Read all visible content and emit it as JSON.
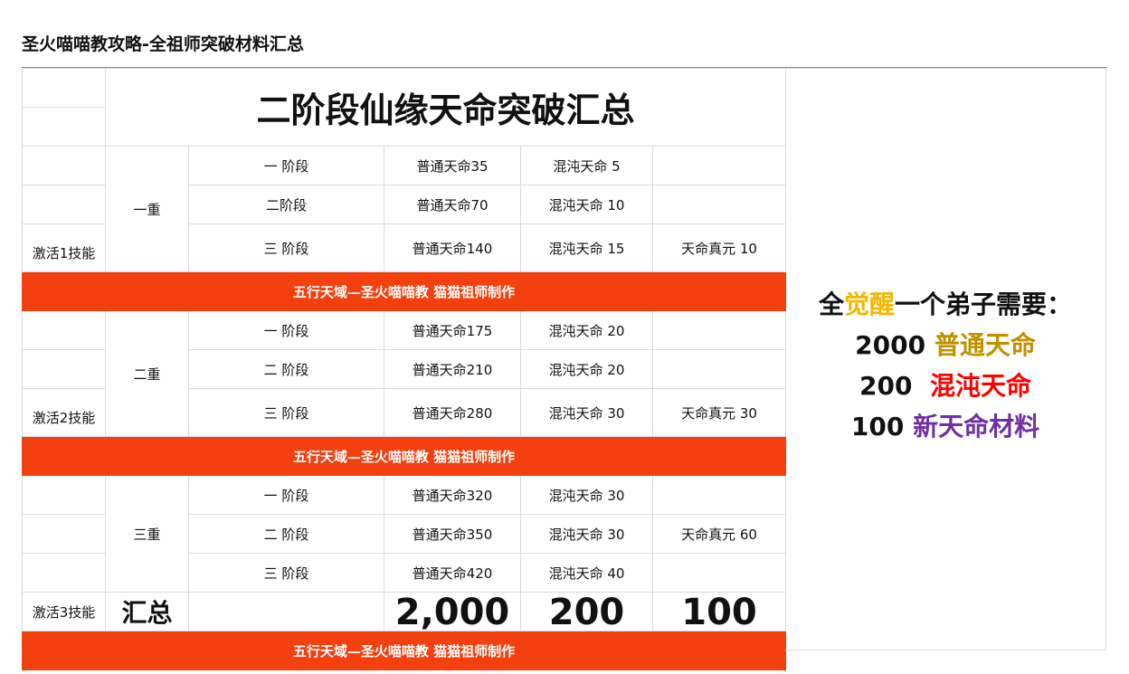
{
  "page_title": "圣火喵喵教攻略-全祖师突破材料汇总",
  "table_title": "二阶段仙缘天命突破汇总",
  "banner_text": "五行天域—圣火喵喵教 猫猫祖师制作",
  "tiers": [
    {
      "tier": "一重",
      "activation": "激活1技能",
      "rows": [
        {
          "stage": "一 阶段",
          "normal": "普通天命35",
          "chaos": "混沌天命 5",
          "essence": ""
        },
        {
          "stage": "二阶段",
          "normal": "普通天命70",
          "chaos": "混沌天命 10",
          "essence": ""
        },
        {
          "stage": "三 阶段",
          "normal": "普通天命140",
          "chaos": "混沌天命 15",
          "essence": "天命真元 10"
        }
      ]
    },
    {
      "tier": "二重",
      "activation": "激活2技能",
      "rows": [
        {
          "stage": "一 阶段",
          "normal": "普通天命175",
          "chaos": "混沌天命 20",
          "essence": ""
        },
        {
          "stage": "二 阶段",
          "normal": "普通天命210",
          "chaos": "混沌天命 20",
          "essence": ""
        },
        {
          "stage": "三 阶段",
          "normal": "普通天命280",
          "chaos": "混沌天命 30",
          "essence": "天命真元 30"
        }
      ]
    },
    {
      "tier": "三重",
      "activation": "激活3技能",
      "rows": [
        {
          "stage": "一 阶段",
          "normal": "普通天命320",
          "chaos": "混沌天命 30",
          "essence": ""
        },
        {
          "stage": "二 阶段",
          "normal": "普通天命350",
          "chaos": "混沌天命 30",
          "essence": "天命真元 60"
        },
        {
          "stage": "三 阶段",
          "normal": "普通天命420",
          "chaos": "混沌天命 40",
          "essence": ""
        }
      ]
    }
  ],
  "totals": {
    "label": "汇总",
    "normal": "2,000",
    "chaos": "200",
    "essence": "100"
  },
  "summary": {
    "prefix": "全",
    "highlight": "觉醒",
    "suffix": "一个弟子需要：",
    "normal_count": "2000",
    "normal_label": "普通天命",
    "chaos_count": "200",
    "chaos_label": "混沌天命",
    "new_count": "100",
    "new_label": "新天命材料"
  },
  "colors": {
    "banner": "#f43f0e",
    "awaken": "#f2b800",
    "normal": "#c09000",
    "chaos": "#ff0000",
    "new_material": "#7030a0"
  }
}
